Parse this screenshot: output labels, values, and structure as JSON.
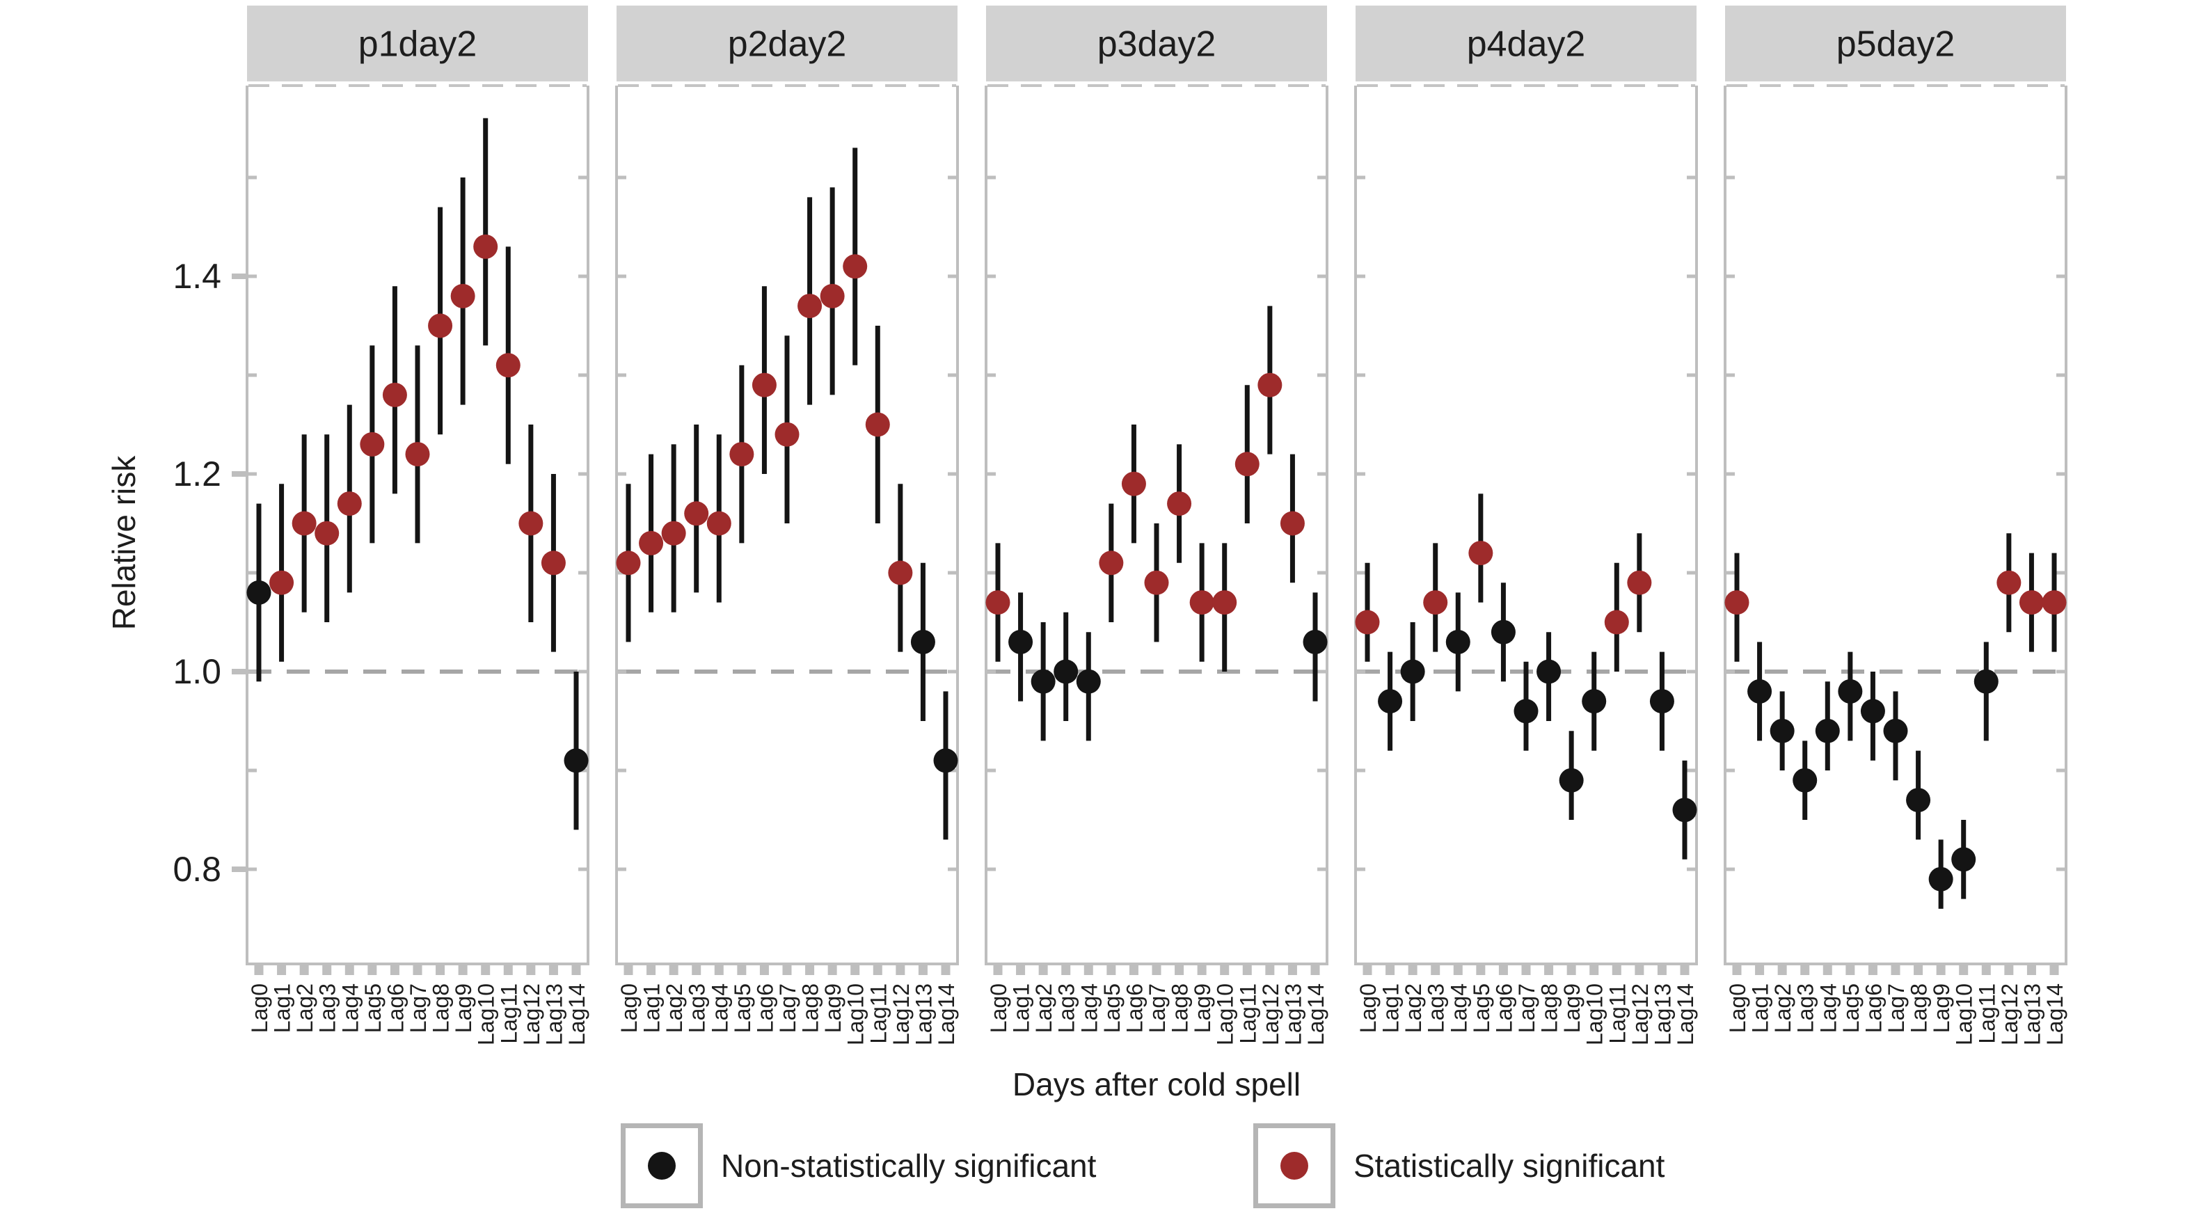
{
  "figure": {
    "ylabel": "Relative risk",
    "xlabel": "Days after cold spell"
  },
  "legend": {
    "items": [
      {
        "label": "Non-statistically significant",
        "color": "#141414"
      },
      {
        "label": "Statistically significant",
        "color": "#9e2b2b"
      }
    ]
  },
  "chart_data": {
    "type": "scatter",
    "variant": "pointrange_faceted",
    "xlabel": "Days after cold spell",
    "ylabel": "Relative risk",
    "x_categories": [
      "Lag0",
      "Lag1",
      "Lag2",
      "Lag3",
      "Lag4",
      "Lag5",
      "Lag6",
      "Lag7",
      "Lag8",
      "Lag9",
      "Lag10",
      "Lag11",
      "Lag12",
      "Lag13",
      "Lag14"
    ],
    "y_ticks": [
      0.8,
      1.0,
      1.2,
      1.4
    ],
    "y_tick_labels": [
      "0.8",
      "1.0",
      "1.2",
      "1.4"
    ],
    "y_minor_ticks": [
      0.8,
      0.9,
      1.0,
      1.1,
      1.2,
      1.3,
      1.4,
      1.5
    ],
    "ylim": [
      0.7,
      1.59
    ],
    "reference_line": 1.0,
    "grid": false,
    "legend_position": "bottom",
    "point_colors": {
      "significant": "#9e2b2b",
      "non_significant": "#141414"
    },
    "styles": {
      "strip_bg": "#d2d2d2",
      "panel_border": "#bebebe",
      "tick_color": "#bebebe",
      "ref_line_color": "#a6a6a6",
      "top_dash_color": "#c4c4c4",
      "ci_color": "#141414",
      "text_color": "#1d1d1d"
    },
    "facets": [
      {
        "title": "p1day2",
        "points": [
          {
            "x": "Lag0",
            "y": 1.08,
            "lo": 0.99,
            "hi": 1.17,
            "significant": false
          },
          {
            "x": "Lag1",
            "y": 1.09,
            "lo": 1.01,
            "hi": 1.19,
            "significant": true
          },
          {
            "x": "Lag2",
            "y": 1.15,
            "lo": 1.06,
            "hi": 1.24,
            "significant": true
          },
          {
            "x": "Lag3",
            "y": 1.14,
            "lo": 1.05,
            "hi": 1.24,
            "significant": true
          },
          {
            "x": "Lag4",
            "y": 1.17,
            "lo": 1.08,
            "hi": 1.27,
            "significant": true
          },
          {
            "x": "Lag5",
            "y": 1.23,
            "lo": 1.13,
            "hi": 1.33,
            "significant": true
          },
          {
            "x": "Lag6",
            "y": 1.28,
            "lo": 1.18,
            "hi": 1.39,
            "significant": true
          },
          {
            "x": "Lag7",
            "y": 1.22,
            "lo": 1.13,
            "hi": 1.33,
            "significant": true
          },
          {
            "x": "Lag8",
            "y": 1.35,
            "lo": 1.24,
            "hi": 1.47,
            "significant": true
          },
          {
            "x": "Lag9",
            "y": 1.38,
            "lo": 1.27,
            "hi": 1.5,
            "significant": true
          },
          {
            "x": "Lag10",
            "y": 1.43,
            "lo": 1.33,
            "hi": 1.56,
            "significant": true
          },
          {
            "x": "Lag11",
            "y": 1.31,
            "lo": 1.21,
            "hi": 1.43,
            "significant": true
          },
          {
            "x": "Lag12",
            "y": 1.15,
            "lo": 1.05,
            "hi": 1.25,
            "significant": true
          },
          {
            "x": "Lag13",
            "y": 1.11,
            "lo": 1.02,
            "hi": 1.2,
            "significant": true
          },
          {
            "x": "Lag14",
            "y": 0.91,
            "lo": 0.84,
            "hi": 1.0,
            "significant": false
          }
        ]
      },
      {
        "title": "p2day2",
        "points": [
          {
            "x": "Lag0",
            "y": 1.11,
            "lo": 1.03,
            "hi": 1.19,
            "significant": true
          },
          {
            "x": "Lag1",
            "y": 1.13,
            "lo": 1.06,
            "hi": 1.22,
            "significant": true
          },
          {
            "x": "Lag2",
            "y": 1.14,
            "lo": 1.06,
            "hi": 1.23,
            "significant": true
          },
          {
            "x": "Lag3",
            "y": 1.16,
            "lo": 1.08,
            "hi": 1.25,
            "significant": true
          },
          {
            "x": "Lag4",
            "y": 1.15,
            "lo": 1.07,
            "hi": 1.24,
            "significant": true
          },
          {
            "x": "Lag5",
            "y": 1.22,
            "lo": 1.13,
            "hi": 1.31,
            "significant": true
          },
          {
            "x": "Lag6",
            "y": 1.29,
            "lo": 1.2,
            "hi": 1.39,
            "significant": true
          },
          {
            "x": "Lag7",
            "y": 1.24,
            "lo": 1.15,
            "hi": 1.34,
            "significant": true
          },
          {
            "x": "Lag8",
            "y": 1.37,
            "lo": 1.27,
            "hi": 1.48,
            "significant": true
          },
          {
            "x": "Lag9",
            "y": 1.38,
            "lo": 1.28,
            "hi": 1.49,
            "significant": true
          },
          {
            "x": "Lag10",
            "y": 1.41,
            "lo": 1.31,
            "hi": 1.53,
            "significant": true
          },
          {
            "x": "Lag11",
            "y": 1.25,
            "lo": 1.15,
            "hi": 1.35,
            "significant": true
          },
          {
            "x": "Lag12",
            "y": 1.1,
            "lo": 1.02,
            "hi": 1.19,
            "significant": true
          },
          {
            "x": "Lag13",
            "y": 1.03,
            "lo": 0.95,
            "hi": 1.11,
            "significant": false
          },
          {
            "x": "Lag14",
            "y": 0.91,
            "lo": 0.83,
            "hi": 0.98,
            "significant": false
          }
        ]
      },
      {
        "title": "p3day2",
        "points": [
          {
            "x": "Lag0",
            "y": 1.07,
            "lo": 1.01,
            "hi": 1.13,
            "significant": true
          },
          {
            "x": "Lag1",
            "y": 1.03,
            "lo": 0.97,
            "hi": 1.08,
            "significant": false
          },
          {
            "x": "Lag2",
            "y": 0.99,
            "lo": 0.93,
            "hi": 1.05,
            "significant": false
          },
          {
            "x": "Lag3",
            "y": 1.0,
            "lo": 0.95,
            "hi": 1.06,
            "significant": false
          },
          {
            "x": "Lag4",
            "y": 0.99,
            "lo": 0.93,
            "hi": 1.04,
            "significant": false
          },
          {
            "x": "Lag5",
            "y": 1.11,
            "lo": 1.05,
            "hi": 1.17,
            "significant": true
          },
          {
            "x": "Lag6",
            "y": 1.19,
            "lo": 1.13,
            "hi": 1.25,
            "significant": true
          },
          {
            "x": "Lag7",
            "y": 1.09,
            "lo": 1.03,
            "hi": 1.15,
            "significant": true
          },
          {
            "x": "Lag8",
            "y": 1.17,
            "lo": 1.11,
            "hi": 1.23,
            "significant": true
          },
          {
            "x": "Lag9",
            "y": 1.07,
            "lo": 1.01,
            "hi": 1.13,
            "significant": true
          },
          {
            "x": "Lag10",
            "y": 1.07,
            "lo": 1.0,
            "hi": 1.13,
            "significant": true
          },
          {
            "x": "Lag11",
            "y": 1.21,
            "lo": 1.15,
            "hi": 1.29,
            "significant": true
          },
          {
            "x": "Lag12",
            "y": 1.29,
            "lo": 1.22,
            "hi": 1.37,
            "significant": true
          },
          {
            "x": "Lag13",
            "y": 1.15,
            "lo": 1.09,
            "hi": 1.22,
            "significant": true
          },
          {
            "x": "Lag14",
            "y": 1.03,
            "lo": 0.97,
            "hi": 1.08,
            "significant": false
          }
        ]
      },
      {
        "title": "p4day2",
        "points": [
          {
            "x": "Lag0",
            "y": 1.05,
            "lo": 1.01,
            "hi": 1.11,
            "significant": true
          },
          {
            "x": "Lag1",
            "y": 0.97,
            "lo": 0.92,
            "hi": 1.02,
            "significant": false
          },
          {
            "x": "Lag2",
            "y": 1.0,
            "lo": 0.95,
            "hi": 1.05,
            "significant": false
          },
          {
            "x": "Lag3",
            "y": 1.07,
            "lo": 1.02,
            "hi": 1.13,
            "significant": true
          },
          {
            "x": "Lag4",
            "y": 1.03,
            "lo": 0.98,
            "hi": 1.08,
            "significant": false
          },
          {
            "x": "Lag5",
            "y": 1.12,
            "lo": 1.07,
            "hi": 1.18,
            "significant": true
          },
          {
            "x": "Lag6",
            "y": 1.04,
            "lo": 0.99,
            "hi": 1.09,
            "significant": false
          },
          {
            "x": "Lag7",
            "y": 0.96,
            "lo": 0.92,
            "hi": 1.01,
            "significant": false
          },
          {
            "x": "Lag8",
            "y": 1.0,
            "lo": 0.95,
            "hi": 1.04,
            "significant": false
          },
          {
            "x": "Lag9",
            "y": 0.89,
            "lo": 0.85,
            "hi": 0.94,
            "significant": false
          },
          {
            "x": "Lag10",
            "y": 0.97,
            "lo": 0.92,
            "hi": 1.02,
            "significant": false
          },
          {
            "x": "Lag11",
            "y": 1.05,
            "lo": 1.0,
            "hi": 1.11,
            "significant": true
          },
          {
            "x": "Lag12",
            "y": 1.09,
            "lo": 1.04,
            "hi": 1.14,
            "significant": true
          },
          {
            "x": "Lag13",
            "y": 0.97,
            "lo": 0.92,
            "hi": 1.02,
            "significant": false
          },
          {
            "x": "Lag14",
            "y": 0.86,
            "lo": 0.81,
            "hi": 0.91,
            "significant": false
          }
        ]
      },
      {
        "title": "p5day2",
        "points": [
          {
            "x": "Lag0",
            "y": 1.07,
            "lo": 1.01,
            "hi": 1.12,
            "significant": true
          },
          {
            "x": "Lag1",
            "y": 0.98,
            "lo": 0.93,
            "hi": 1.03,
            "significant": false
          },
          {
            "x": "Lag2",
            "y": 0.94,
            "lo": 0.9,
            "hi": 0.98,
            "significant": false
          },
          {
            "x": "Lag3",
            "y": 0.89,
            "lo": 0.85,
            "hi": 0.93,
            "significant": false
          },
          {
            "x": "Lag4",
            "y": 0.94,
            "lo": 0.9,
            "hi": 0.99,
            "significant": false
          },
          {
            "x": "Lag5",
            "y": 0.98,
            "lo": 0.93,
            "hi": 1.02,
            "significant": false
          },
          {
            "x": "Lag6",
            "y": 0.96,
            "lo": 0.91,
            "hi": 1.0,
            "significant": false
          },
          {
            "x": "Lag7",
            "y": 0.94,
            "lo": 0.89,
            "hi": 0.98,
            "significant": false
          },
          {
            "x": "Lag8",
            "y": 0.87,
            "lo": 0.83,
            "hi": 0.92,
            "significant": false
          },
          {
            "x": "Lag9",
            "y": 0.79,
            "lo": 0.76,
            "hi": 0.83,
            "significant": false
          },
          {
            "x": "Lag10",
            "y": 0.81,
            "lo": 0.77,
            "hi": 0.85,
            "significant": false
          },
          {
            "x": "Lag11",
            "y": 0.99,
            "lo": 0.93,
            "hi": 1.03,
            "significant": false
          },
          {
            "x": "Lag12",
            "y": 1.09,
            "lo": 1.04,
            "hi": 1.14,
            "significant": true
          },
          {
            "x": "Lag13",
            "y": 1.07,
            "lo": 1.02,
            "hi": 1.12,
            "significant": true
          },
          {
            "x": "Lag14",
            "y": 1.07,
            "lo": 1.02,
            "hi": 1.12,
            "significant": true
          }
        ]
      }
    ]
  }
}
